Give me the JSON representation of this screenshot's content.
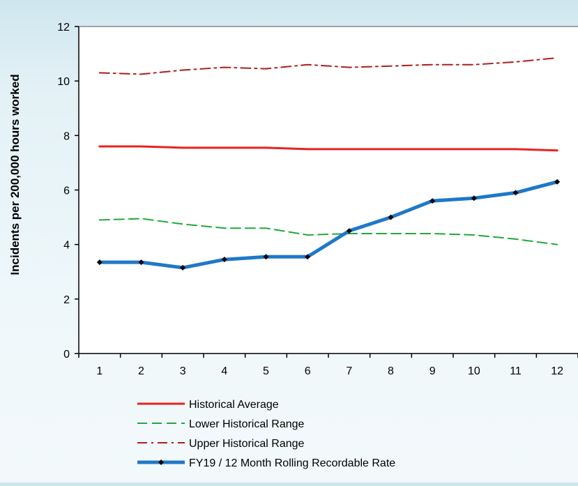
{
  "chart_data": {
    "type": "line",
    "title": "",
    "xlabel": "",
    "ylabel": "Incidents per 200,000 hours worked",
    "categories": [
      "1",
      "2",
      "3",
      "4",
      "5",
      "6",
      "7",
      "8",
      "9",
      "10",
      "11",
      "12"
    ],
    "ylim": [
      0,
      12
    ],
    "yticks": [
      "0",
      "2",
      "4",
      "6",
      "8",
      "10",
      "12"
    ],
    "grid": false,
    "legend_position": "bottom",
    "series": [
      {
        "name": "Historical Average",
        "color": "#e8231f",
        "style": "solid",
        "values": [
          7.6,
          7.6,
          7.55,
          7.55,
          7.55,
          7.5,
          7.5,
          7.5,
          7.5,
          7.5,
          7.5,
          7.45
        ]
      },
      {
        "name": "Lower Historical Range",
        "color": "#21a83a",
        "style": "dashed",
        "values": [
          4.9,
          4.95,
          4.75,
          4.6,
          4.6,
          4.35,
          4.4,
          4.4,
          4.4,
          4.35,
          4.2,
          4.0
        ]
      },
      {
        "name": "Upper Historical Range",
        "color": "#b01c1c",
        "style": "dashdot",
        "values": [
          10.3,
          10.25,
          10.4,
          10.5,
          10.45,
          10.6,
          10.5,
          10.55,
          10.6,
          10.6,
          10.7,
          10.85
        ]
      },
      {
        "name": "FY19 / 12 Month Rolling Recordable Rate",
        "color": "#1f78c8",
        "style": "solid-thick-markers",
        "values": [
          3.35,
          3.35,
          3.15,
          3.45,
          3.55,
          3.55,
          4.5,
          5.0,
          5.6,
          5.7,
          5.9,
          6.3
        ]
      }
    ]
  }
}
